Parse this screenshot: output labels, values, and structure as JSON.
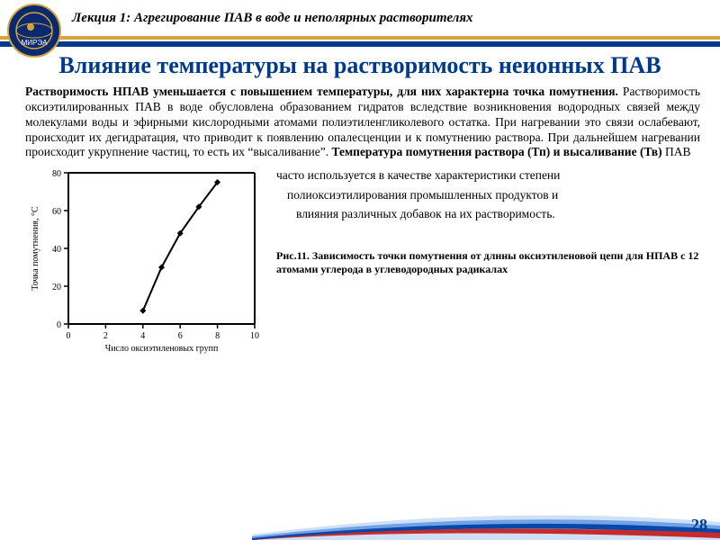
{
  "header": {
    "lecture_label": "Лекция 1: Агрегирование ПАВ в воде и неполярных растворителях",
    "logo_text": "МИРЭА",
    "accent_color": "#d8a43a",
    "bar_color": "#003a8c"
  },
  "title": "Влияние температуры на растворимость неионных ПАВ",
  "body": {
    "lead": "Растворимость НПАВ уменьшается с повышением температуры, для них характерна точка помутнения.",
    "p1": " Растворимость оксиэтилированных ПАВ в воде обусловлена образованием гидратов вследствие возникновения водородных связей между молекулами воды и эфирными кислородными атомами полиэтиленгликолевого остатка. При нагревании это связи ослабевают, происходит их дегидратация, что приводит к появлению опалесценции и к помутнению раствора. При дальнейшем нагревании происходит укрупнение частиц, то есть их “высаливание”. ",
    "bold2": "Температура помутнения раствора (Тп) и высаливание (Тв)",
    "p2a": " ПАВ",
    "p2b": "часто используется в качестве характеристики степени",
    "p2c": "полиоксиэтилирования промышленных продуктов и",
    "p2d": "влияния различных добавок на их растворимость."
  },
  "chart": {
    "type": "line",
    "x_label": "Число оксиэтиленовых групп",
    "y_label": "Точка помутнения, °С",
    "xlim": [
      0,
      10
    ],
    "xtick_step": 2,
    "ylim": [
      0,
      80
    ],
    "ytick_step": 20,
    "line_color": "#000000",
    "line_width": 2,
    "marker": "diamond",
    "marker_size": 7,
    "marker_fill": "#000000",
    "background_color": "#ffffff",
    "axis_color": "#000000",
    "axis_width": 2,
    "points": [
      {
        "x": 4,
        "y": 7
      },
      {
        "x": 5,
        "y": 30
      },
      {
        "x": 6,
        "y": 48
      },
      {
        "x": 7,
        "y": 62
      },
      {
        "x": 8,
        "y": 75
      }
    ]
  },
  "caption": "Рис.11. Зависимость точки помутнения от длины оксиэтиленовой цепи для НПАВ с 12 атомами углерода в углеводородных радикалах",
  "footer": {
    "page_number": "28",
    "stripe_colors": [
      "#c52b2b",
      "#0846a8",
      "#6ea3e8",
      "#cfe0f6"
    ]
  }
}
